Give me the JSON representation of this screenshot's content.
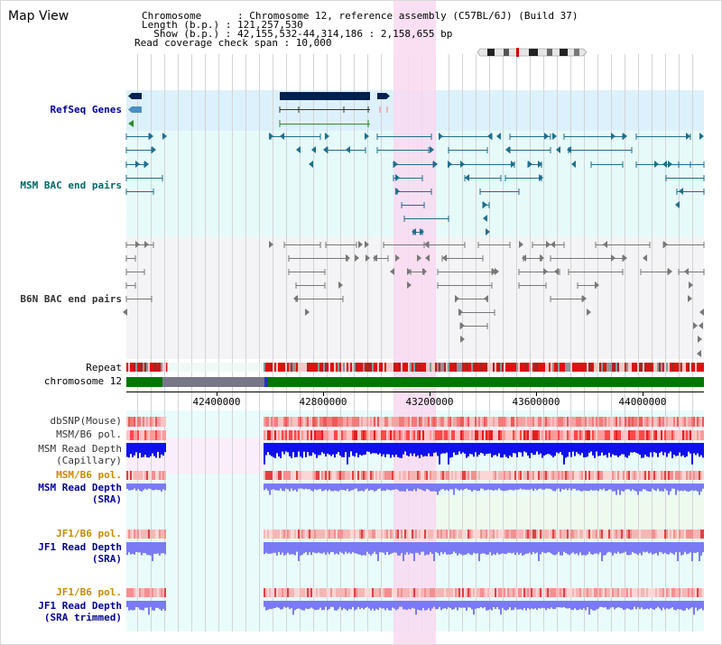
{
  "header": {
    "title": "Map View",
    "lines": [
      "Chromosome      : Chromosome 12, reference assembly (C57BL/6J) (Build 37)",
      "Length (b.p.) : 121,257,530",
      "  Show (b.p.) : 42,155,532-44,314,186 : 2,158,655 bp",
      "Read coverage check span : 10,000"
    ]
  },
  "tracks": {
    "refseq": "RefSeq Genes",
    "msm_bac": "MSM BAC end pairs",
    "b6n_bac": "B6N BAC end pairs",
    "repeat": "Repeat",
    "chromosome": "chromosome 12",
    "dbsnp": "dbSNP(Mouse)",
    "msm_pol": "MSM/B6 pol.",
    "msm_depth_cap_1": "MSM Read Depth",
    "msm_depth_cap_2": "(Capillary)",
    "msm_pol_2": "MSM/B6 pol.",
    "msm_depth_sra_1": "MSM Read Depth",
    "msm_depth_sra_2": "(SRA)",
    "jf1_pol": "JF1/B6 pol.",
    "jf1_depth_1": "JF1 Read Depth",
    "jf1_depth_2": "(SRA)",
    "jf1_pol_2": "JF1/B6 pol.",
    "jf1_trim_1": "JF1 Read Depth",
    "jf1_trim_2": "(SRA trimmed)"
  },
  "axis": {
    "ticks": [
      "42400000",
      "42800000",
      "43200000",
      "43600000",
      "44000000"
    ]
  },
  "colors": {
    "label_black": "#000000",
    "label_navy": "#000099",
    "label_teal": "#006666",
    "label_gray": "#333333",
    "label_orange": "#cc8800",
    "gene": "#00204f",
    "msm_feature": "#1f6e8c",
    "b6n_feature": "#777777",
    "highlight": "#f9d9f1",
    "depth_blue": "#1010ee",
    "depth_light": "#7a7af4",
    "chrom_green": "#007700",
    "centromere": "#cc0000"
  }
}
